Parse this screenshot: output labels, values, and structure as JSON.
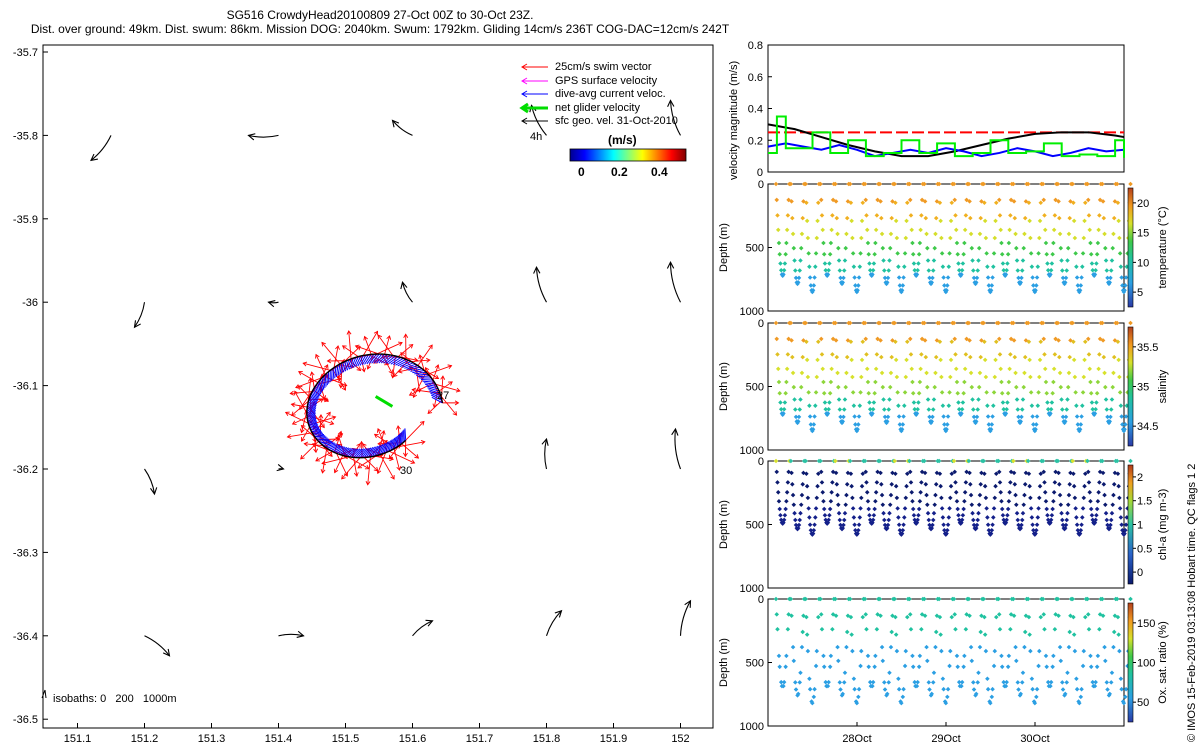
{
  "title": {
    "line1": "SG516 CrowdyHead20100809 27-Oct 00Z to 30-Oct 23Z.",
    "line2": "Dist. over ground: 49km. Dist. swum: 86km. Mission DOG: 2040km. Swum: 1792km. Gliding 14cm/s 236T COG-DAC=12cm/s 242T"
  },
  "copyright": "© IMOS 15-Feb-2019 03:13:08 Hobart time. QC flags 1 2",
  "chart_data": [
    {
      "type": "scatter",
      "name": "map",
      "xticks": [
        "151.1",
        "151.2",
        "151.3",
        "151.4",
        "151.5",
        "151.6",
        "151.7",
        "151.8",
        "151.9",
        "152"
      ],
      "yticks": [
        "-35.7",
        "-35.8",
        "-35.9",
        "-36",
        "-36.1",
        "-36.2",
        "-36.3",
        "-36.4",
        "-36.5"
      ],
      "xlim": [
        151.05,
        152.05
      ],
      "ylim": [
        -36.51,
        -35.69
      ],
      "legend": {
        "placement": "top-right",
        "items": [
          {
            "label": "25cm/s swim vector",
            "color": "#ff0000"
          },
          {
            "label": "GPS surface velocity",
            "color": "#ff00ff"
          },
          {
            "label": "dive-avg current veloc.",
            "color": "#0000ff"
          },
          {
            "label": "net glider velocity",
            "color": "#00dd00"
          },
          {
            "label": "sfc geo. vel. 31-Oct-2010",
            "color": "#000000"
          }
        ],
        "time_label": "4h",
        "colorbar_label": "(m/s)",
        "colorbar_ticks": [
          "0",
          "0.2",
          "0.4"
        ]
      },
      "annotations": [
        "27",
        "30",
        "isobaths: 0   200   1000m"
      ],
      "geo_vectors": [
        {
          "lon": 151.15,
          "lat": -35.8,
          "u": -0.04,
          "v": -0.05
        },
        {
          "lon": 151.4,
          "lat": -35.8,
          "u": -0.06,
          "v": 0.0
        },
        {
          "lon": 151.6,
          "lat": -35.8,
          "u": -0.04,
          "v": 0.03
        },
        {
          "lon": 151.8,
          "lat": -35.8,
          "u": -0.03,
          "v": 0.06
        },
        {
          "lon": 152.0,
          "lat": -35.8,
          "u": -0.02,
          "v": 0.07
        },
        {
          "lon": 151.2,
          "lat": -36.0,
          "u": -0.02,
          "v": -0.05
        },
        {
          "lon": 151.4,
          "lat": -36.0,
          "u": -0.02,
          "v": 0.0
        },
        {
          "lon": 151.6,
          "lat": -36.0,
          "u": -0.02,
          "v": 0.04
        },
        {
          "lon": 151.8,
          "lat": -36.0,
          "u": -0.02,
          "v": 0.07
        },
        {
          "lon": 152.0,
          "lat": -36.0,
          "u": -0.02,
          "v": 0.08
        },
        {
          "lon": 151.4,
          "lat": -36.2,
          "u": 0.01,
          "v": 0.0
        },
        {
          "lon": 151.8,
          "lat": -36.2,
          "u": 0.0,
          "v": 0.06
        },
        {
          "lon": 152.0,
          "lat": -36.2,
          "u": -0.01,
          "v": 0.08
        },
        {
          "lon": 151.2,
          "lat": -36.2,
          "u": 0.02,
          "v": -0.05
        },
        {
          "lon": 151.2,
          "lat": -36.4,
          "u": 0.05,
          "v": -0.04
        },
        {
          "lon": 151.4,
          "lat": -36.4,
          "u": 0.05,
          "v": 0.0
        },
        {
          "lon": 151.6,
          "lat": -36.4,
          "u": 0.04,
          "v": 0.03
        },
        {
          "lon": 151.8,
          "lat": -36.4,
          "u": 0.03,
          "v": 0.05
        },
        {
          "lon": 152.0,
          "lat": -36.4,
          "u": 0.02,
          "v": 0.07
        }
      ]
    },
    {
      "type": "line",
      "name": "velocity",
      "ylabel": "velocity magnitude (m/s)",
      "yticks": [
        "0",
        "0.2",
        "0.4",
        "0.6",
        "0.8"
      ],
      "ylim": [
        0,
        0.8
      ],
      "xlim": [
        27.0,
        31.0
      ],
      "series": [
        {
          "color": "#ff0000",
          "x": [
            27.0,
            31.0
          ],
          "y": [
            0.25,
            0.25
          ]
        },
        {
          "color": "#000000",
          "x": [
            27.0,
            27.3,
            27.6,
            27.9,
            28.2,
            28.5,
            28.8,
            29.1,
            29.4,
            29.7,
            30.0,
            30.3,
            30.6,
            30.9,
            31.0
          ],
          "y": [
            0.3,
            0.27,
            0.22,
            0.17,
            0.13,
            0.1,
            0.1,
            0.13,
            0.17,
            0.21,
            0.24,
            0.25,
            0.25,
            0.23,
            0.22
          ]
        },
        {
          "color": "#0000ff",
          "x": [
            27.0,
            27.2,
            27.4,
            27.6,
            27.8,
            28.0,
            28.2,
            28.4,
            28.6,
            28.8,
            29.0,
            29.2,
            29.4,
            29.6,
            29.8,
            30.0,
            30.2,
            30.4,
            30.6,
            30.8,
            31.0
          ],
          "y": [
            0.16,
            0.18,
            0.16,
            0.14,
            0.17,
            0.14,
            0.1,
            0.12,
            0.14,
            0.12,
            0.15,
            0.13,
            0.1,
            0.12,
            0.15,
            0.13,
            0.1,
            0.12,
            0.15,
            0.13,
            0.14
          ]
        },
        {
          "color": "#00ee00",
          "x": [
            27.0,
            27.1,
            27.2,
            27.4,
            27.5,
            27.7,
            27.9,
            28.1,
            28.3,
            28.5,
            28.7,
            28.9,
            29.1,
            29.3,
            29.5,
            29.7,
            29.9,
            30.1,
            30.3,
            30.5,
            30.7,
            30.9,
            31.0
          ],
          "y": [
            0.12,
            0.35,
            0.15,
            0.15,
            0.25,
            0.12,
            0.2,
            0.1,
            0.12,
            0.2,
            0.12,
            0.18,
            0.1,
            0.12,
            0.2,
            0.12,
            0.13,
            0.18,
            0.1,
            0.11,
            0.1,
            0.2,
            0.09
          ]
        }
      ]
    },
    {
      "type": "scatter",
      "name": "temperature",
      "ylabel": "Depth (m)",
      "colorbar_label": "temperature (°C)",
      "yticks": [
        "0",
        "500",
        "1000"
      ],
      "colorbar_ticks": [
        "5",
        "10",
        "15",
        "20"
      ],
      "ylim": [
        0,
        1000
      ],
      "dives": 24,
      "max_depth": 850
    },
    {
      "type": "scatter",
      "name": "salinity",
      "ylabel": "Depth (m)",
      "colorbar_label": "salinity",
      "yticks": [
        "0",
        "500",
        "1000"
      ],
      "colorbar_ticks": [
        "34.5",
        "35",
        "35.5"
      ],
      "ylim": [
        0,
        1000
      ],
      "dives": 24,
      "max_depth": 850
    },
    {
      "type": "scatter",
      "name": "chla",
      "ylabel": "Depth (m)",
      "colorbar_label": "chl-a (mg m-3)",
      "yticks": [
        "0",
        "500",
        "1000"
      ],
      "colorbar_ticks": [
        "0",
        "0.5",
        "1",
        "1.5",
        "2"
      ],
      "ylim": [
        0,
        1000
      ],
      "dives": 24,
      "max_depth": 580
    },
    {
      "type": "scatter",
      "name": "oxygen",
      "ylabel": "Depth (m)",
      "colorbar_label": "Ox. sat. ratio (%)",
      "yticks": [
        "0",
        "500",
        "1000"
      ],
      "colorbar_ticks": [
        "50",
        "100",
        "150"
      ],
      "xticks": [
        "28Oct",
        "29Oct",
        "30Oct"
      ],
      "ylim": [
        0,
        1000
      ],
      "dives": 24,
      "max_depth": 820
    }
  ]
}
